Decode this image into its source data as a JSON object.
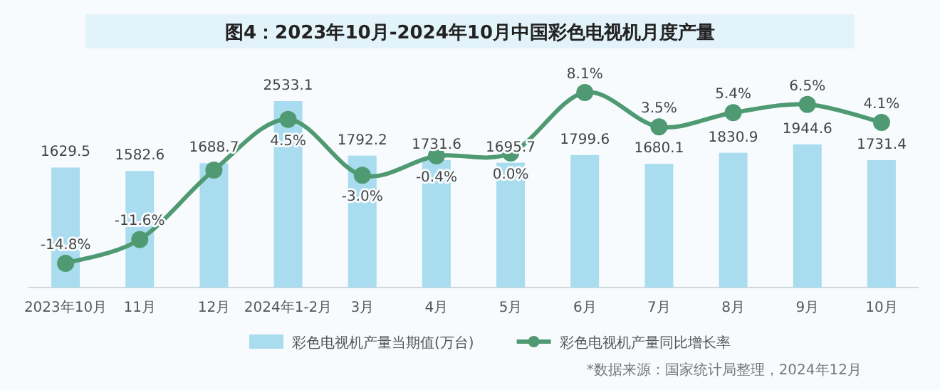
{
  "chart_data": {
    "type": "bar",
    "title": "图4：2023年10月-2024年10月中国彩色电视机月度产量",
    "categories": [
      "2023年10月",
      "11月",
      "12月",
      "2024年1-2月",
      "3月",
      "4月",
      "5月",
      "6月",
      "7月",
      "8月",
      "9月",
      "10月"
    ],
    "legend": "bottom",
    "annotations": [
      "*数据来源：国家统计局整理，2024年12月"
    ],
    "series": [
      {
        "name": "彩色电视机产量当期值(万台)",
        "color": "#a9dcef",
        "values": [
          1629.5,
          1582.6,
          1688.7,
          2533.1,
          1792.2,
          1731.6,
          1695.7,
          1799.6,
          1680.1,
          1830.9,
          1944.6,
          1731.4
        ],
        "value_labels": [
          "1629.5",
          "1582.6",
          "1688.7",
          "2533.1",
          "1792.2",
          "1731.6",
          "1695.7",
          "1799.6",
          "1680.1",
          "1830.9",
          "1944.6",
          "1731.4"
        ]
      },
      {
        "name": "彩色电视机产量同比增长率",
        "type": "line",
        "axis": "y2",
        "color": "#4f9a72",
        "marker": "circle",
        "values": [
          -14.8,
          -11.6,
          -2.3,
          4.5,
          -3.0,
          -0.4,
          0.0,
          8.1,
          3.5,
          5.4,
          6.5,
          4.1
        ],
        "value_labels": [
          "-14.8%",
          "-11.6%",
          null,
          "4.5%",
          "-3.0%",
          "-0.4%",
          "0.0%",
          "8.1%",
          "3.5%",
          "5.4%",
          "6.5%",
          "4.1%"
        ]
      }
    ]
  }
}
